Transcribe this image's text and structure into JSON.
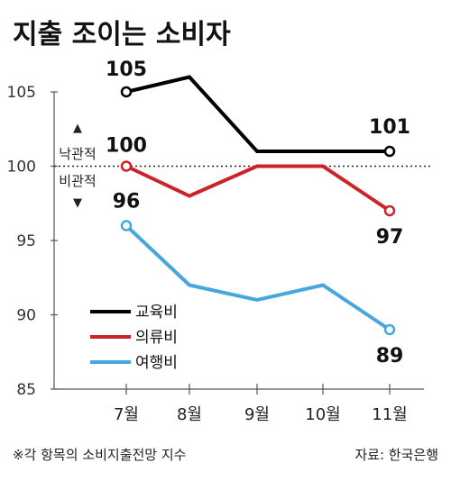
{
  "title": "지출 조이는 소비자",
  "chart_data": {
    "type": "line",
    "categories": [
      "7월",
      "8월",
      "9월",
      "10월",
      "11월"
    ],
    "series": [
      {
        "name": "교육비",
        "values": [
          105,
          106,
          101,
          101,
          101
        ],
        "color": "#000000",
        "labels": {
          "0": "105",
          "4": "101"
        }
      },
      {
        "name": "의류비",
        "values": [
          100,
          98,
          100,
          100,
          97
        ],
        "color": "#cc2229",
        "labels": {
          "0": "100",
          "4": "97"
        }
      },
      {
        "name": "여행비",
        "values": [
          96,
          92,
          91,
          92,
          89
        ],
        "color": "#47a6dc",
        "labels": {
          "0": "96",
          "4": "89"
        }
      }
    ],
    "y_ticks": [
      "105",
      "100",
      "95",
      "90",
      "85"
    ],
    "ylim": [
      85,
      107
    ],
    "reference_line": {
      "value": 100,
      "style": "dotted"
    },
    "annotations": {
      "optimistic": "낙관적",
      "pessimistic": "비관적"
    },
    "grid": false,
    "legend": "bottom-left"
  },
  "footnote": "※각 항목의 소비지출전망 지수",
  "source": "자료: 한국은행"
}
